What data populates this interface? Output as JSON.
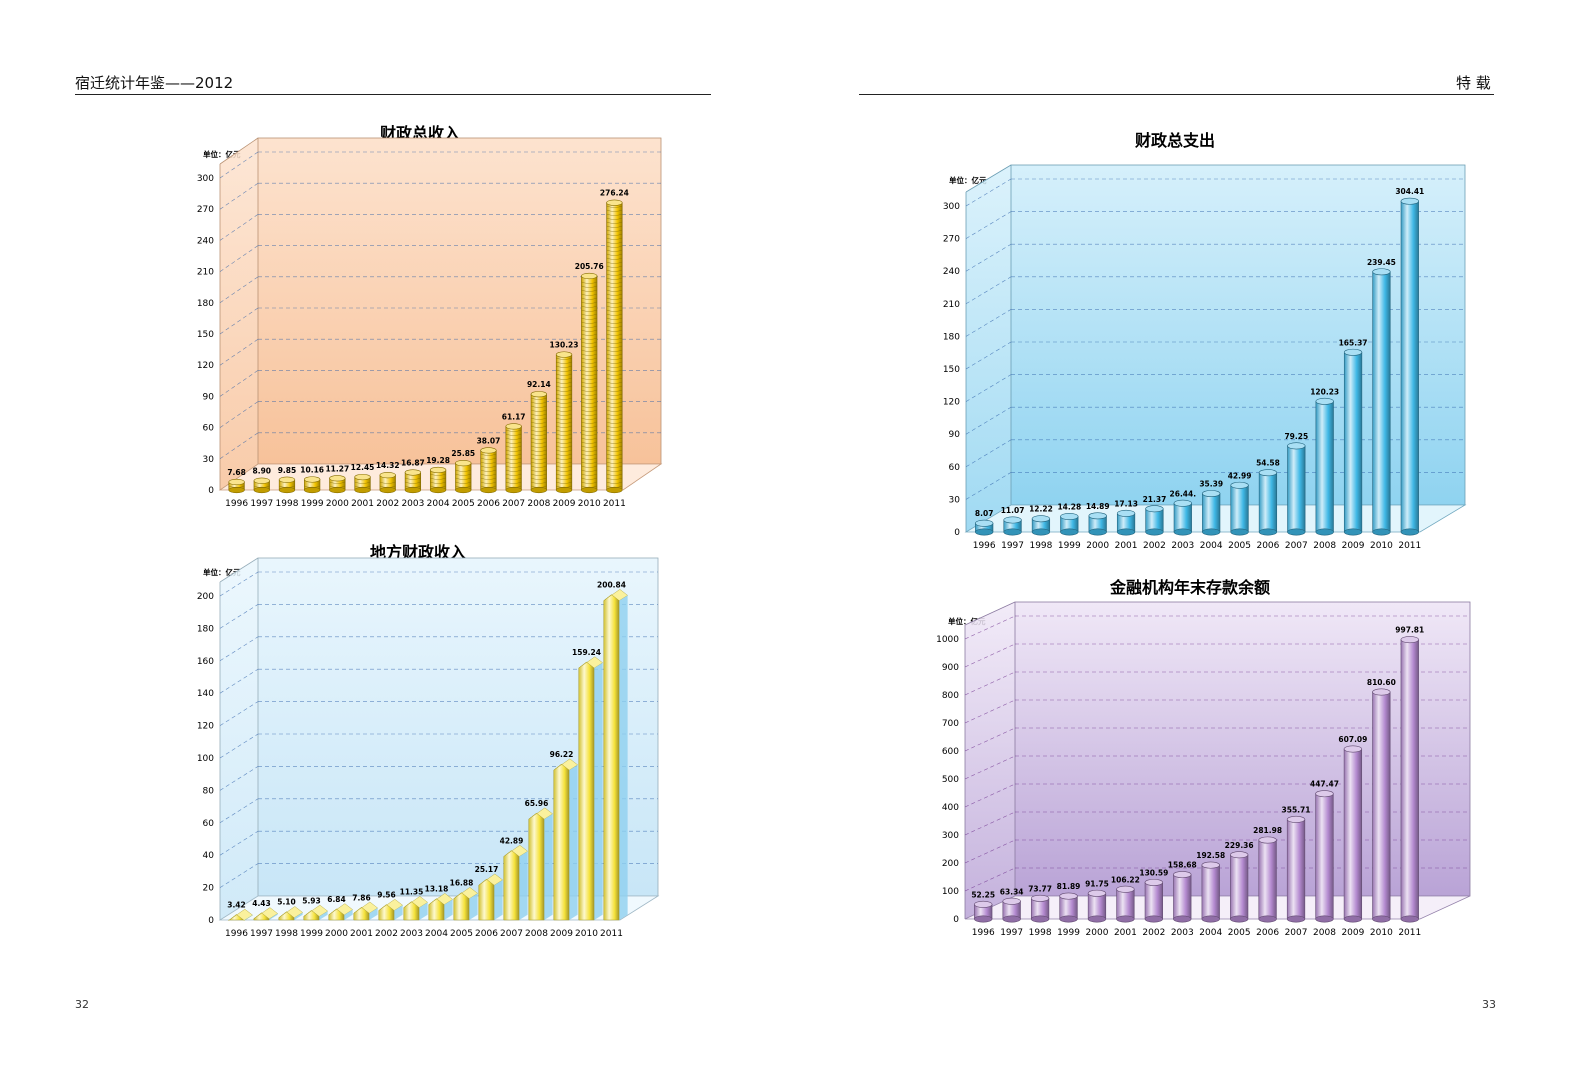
{
  "header": {
    "left_title": "宿迁统计年鉴——2012",
    "right_title": "特 载"
  },
  "page_numbers": {
    "left": "32",
    "right": "33"
  },
  "colors": {
    "rule": "#222222",
    "grid": "#2b5ea8",
    "grid_purple": "#6a2a8a"
  },
  "chart_data": [
    {
      "id": "revenue",
      "type": "bar",
      "title": "财政总收入",
      "unit_label": "单位：亿元",
      "categories": [
        "1996",
        "1997",
        "1998",
        "1999",
        "2000",
        "2001",
        "2002",
        "2003",
        "2004",
        "2005",
        "2006",
        "2007",
        "2008",
        "2009",
        "2010",
        "2011"
      ],
      "values": [
        7.68,
        8.9,
        9.85,
        10.16,
        11.27,
        12.45,
        14.32,
        16.87,
        19.28,
        25.85,
        38.07,
        61.17,
        92.14,
        130.23,
        205.76,
        276.24
      ],
      "value_labels": [
        "7.68",
        "8.90",
        "9.85",
        "10.16",
        "11.27",
        "12.45",
        "14.32",
        "16.87",
        "19.28",
        "25.85",
        "38.07",
        "61.17",
        "92.14",
        "130.23",
        "205.76",
        "276.24"
      ],
      "yticks": [
        "0",
        "30",
        "60",
        "90",
        "120",
        "150",
        "180",
        "210",
        "240",
        "270",
        "300"
      ],
      "ylim": [
        0,
        300
      ],
      "bar_style": "coin-stack",
      "bar_color": "#f2c400",
      "bg_colors": [
        "#fde3cf",
        "#f7c29a"
      ],
      "grid": true
    },
    {
      "id": "local-revenue",
      "type": "bar",
      "title": "地方财政收入",
      "unit_label": "单位：亿元",
      "categories": [
        "1996",
        "1997",
        "1998",
        "1999",
        "2000",
        "2001",
        "2002",
        "2003",
        "2004",
        "2005",
        "2006",
        "2007",
        "2008",
        "2009",
        "2010",
        "2011"
      ],
      "values": [
        3.42,
        4.43,
        5.1,
        5.93,
        6.84,
        7.86,
        9.56,
        11.35,
        13.18,
        16.88,
        25.17,
        42.89,
        65.96,
        96.22,
        159.24,
        200.84
      ],
      "value_labels": [
        "3.42",
        "4.43",
        "5.10",
        "5.93",
        "6.84",
        "7.86",
        "9.56",
        "11.35",
        "13.18",
        "16.88",
        "25.17",
        "42.89",
        "65.96",
        "96.22",
        "159.24",
        "200.84"
      ],
      "yticks": [
        "0",
        "20",
        "40",
        "60",
        "80",
        "100",
        "120",
        "140",
        "160",
        "180",
        "200"
      ],
      "ylim": [
        0,
        200
      ],
      "bar_style": "crystal",
      "bar_color": "#f5e23a",
      "bg_colors": [
        "#e9f6fd",
        "#c8e6f7"
      ],
      "grid": true
    },
    {
      "id": "expenditure",
      "type": "bar",
      "title": "财政总支出",
      "unit_label": "单位：亿元",
      "categories": [
        "1996",
        "1997",
        "1998",
        "1999",
        "2000",
        "2001",
        "2002",
        "2003",
        "2004",
        "2005",
        "2006",
        "2007",
        "2008",
        "2009",
        "2010",
        "2011"
      ],
      "values": [
        8.07,
        11.07,
        12.22,
        14.28,
        14.89,
        17.13,
        21.37,
        26.44,
        35.39,
        42.99,
        54.58,
        79.25,
        120.23,
        165.37,
        239.45,
        304.41
      ],
      "value_labels": [
        "8.07",
        "11.07",
        "12.22",
        "14.28",
        "14.89",
        "17.13",
        "21.37",
        "26.44.",
        "35.39",
        "42.99",
        "54.58",
        "79.25",
        "120.23",
        "165.37",
        "239.45",
        "304.41"
      ],
      "yticks": [
        "0",
        "30",
        "60",
        "90",
        "120",
        "150",
        "180",
        "210",
        "240",
        "270",
        "300"
      ],
      "ylim": [
        0,
        300
      ],
      "bar_style": "cylinder",
      "bar_color": "#3fb8e6",
      "bg_colors": [
        "#d6f0fb",
        "#8fd3f0"
      ],
      "grid": true
    },
    {
      "id": "deposits",
      "type": "bar",
      "title": "金融机构年末存款余额",
      "unit_label": "单位：亿元",
      "categories": [
        "1996",
        "1997",
        "1998",
        "1999",
        "2000",
        "2001",
        "2002",
        "2003",
        "2004",
        "2005",
        "2006",
        "2007",
        "2008",
        "2009",
        "2010",
        "2011"
      ],
      "values": [
        52.25,
        63.34,
        73.77,
        81.89,
        91.75,
        106.22,
        130.59,
        158.68,
        192.58,
        229.36,
        281.98,
        355.71,
        447.47,
        607.09,
        810.6,
        997.81
      ],
      "value_labels": [
        "52.25",
        "63.34",
        "73.77",
        "81.89",
        "91.75",
        "106.22",
        "130.59",
        "158.68",
        "192.58",
        "229.36",
        "281.98",
        "355.71",
        "447.47",
        "607.09",
        "810.60",
        "997.81"
      ],
      "yticks": [
        "0",
        "100",
        "200",
        "300",
        "400",
        "500",
        "600",
        "700",
        "800",
        "900",
        "1000"
      ],
      "ylim": [
        0,
        1000
      ],
      "bar_style": "cylinder",
      "bar_color": "#b48ad0",
      "bg_colors": [
        "#f0e8f7",
        "#b9a3d6"
      ],
      "grid": true
    }
  ]
}
